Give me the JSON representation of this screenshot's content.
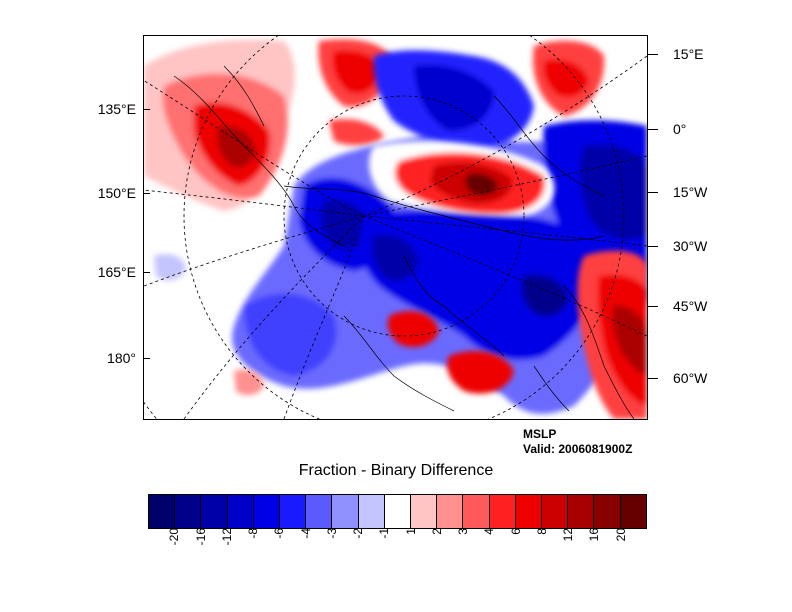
{
  "figure": {
    "field_name": "MSLP",
    "valid_text": "Valid: 2006081900Z",
    "caption": "Fraction - Binary Difference"
  },
  "map": {
    "left_labels": [
      "135°E",
      "150°E",
      "165°E",
      "180°"
    ],
    "right_labels": [
      "15°E",
      "0°",
      "15°W",
      "30°W",
      "45°W",
      "60°W"
    ]
  },
  "colorbar": {
    "labels": [
      "-20",
      "-16",
      "-12",
      "-8",
      "-6",
      "-4",
      "-3",
      "-2",
      "-1",
      "1",
      "2",
      "3",
      "4",
      "6",
      "8",
      "12",
      "16",
      "20"
    ],
    "colors": [
      "#00006b",
      "#00008b",
      "#0000a8",
      "#0000c8",
      "#0000e6",
      "#1a1aff",
      "#5a5aff",
      "#9090ff",
      "#c4c4ff",
      "#ffffff",
      "#ffc4c4",
      "#ff9090",
      "#ff5a5a",
      "#ff2020",
      "#ee0000",
      "#cc0000",
      "#a80000",
      "#880000",
      "#660000"
    ]
  }
}
